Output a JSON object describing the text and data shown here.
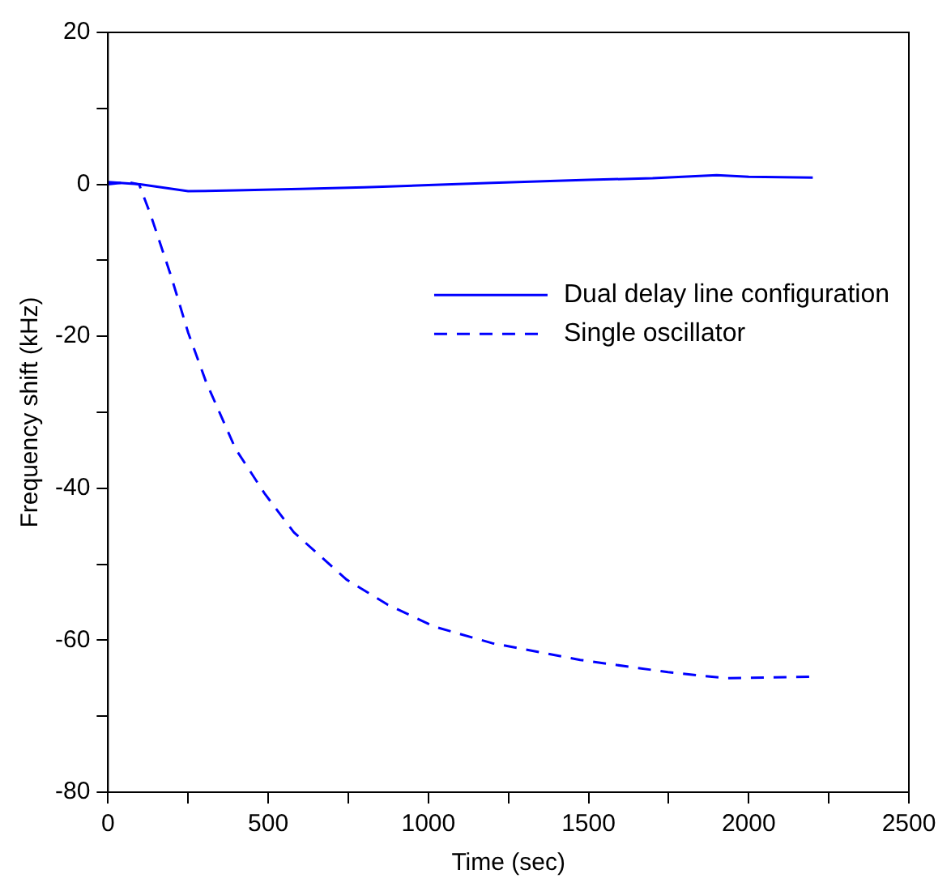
{
  "chart_data": {
    "type": "line",
    "xlabel": "Time (sec)",
    "ylabel": "Frequency shift (kHz)",
    "xlim": [
      0,
      2500
    ],
    "ylim": [
      -80,
      20
    ],
    "xticks": [
      0,
      {
        "value": 250,
        "label": null
      },
      500,
      {
        "value": 750,
        "label": null
      },
      1000,
      {
        "value": 1250,
        "label": null
      },
      1500,
      {
        "value": 1750,
        "label": null
      },
      2000,
      {
        "value": 2250,
        "label": null
      },
      2500
    ],
    "yticks": [
      -80,
      {
        "value": -70,
        "label": null
      },
      -60,
      {
        "value": -50,
        "label": null
      },
      -40,
      {
        "value": -30,
        "label": null
      },
      -20,
      {
        "value": -10,
        "label": null
      },
      0,
      {
        "value": 10,
        "label": null
      },
      20
    ],
    "grid": false,
    "legend": "right",
    "marker": "none",
    "series": [
      {
        "name": "Dual delay line configuration",
        "color": "#0000ff",
        "line_style": "solid",
        "x": [
          0,
          100,
          250,
          400,
          600,
          800,
          1000,
          1200,
          1500,
          1700,
          1900,
          2000,
          2200
        ],
        "values": [
          0.3,
          0,
          -0.9,
          -0.8,
          -0.6,
          -0.4,
          -0.1,
          0.2,
          0.6,
          0.8,
          1.2,
          1.0,
          0.9
        ]
      },
      {
        "name": "Single oscillator",
        "color": "#0000ff",
        "line_style": "dashed",
        "x": [
          0,
          60,
          97,
          133,
          197,
          250,
          306,
          398,
          489,
          580,
          744,
          872,
          1018,
          1200,
          1474,
          1748,
          1930,
          2202
        ],
        "values": [
          0,
          0.3,
          0,
          -4,
          -12.1,
          -19.5,
          -26,
          -34.8,
          -40.7,
          -45.8,
          -52,
          -55.3,
          -58.2,
          -60.4,
          -62.6,
          -64.2,
          -65,
          -64.8
        ]
      }
    ]
  }
}
